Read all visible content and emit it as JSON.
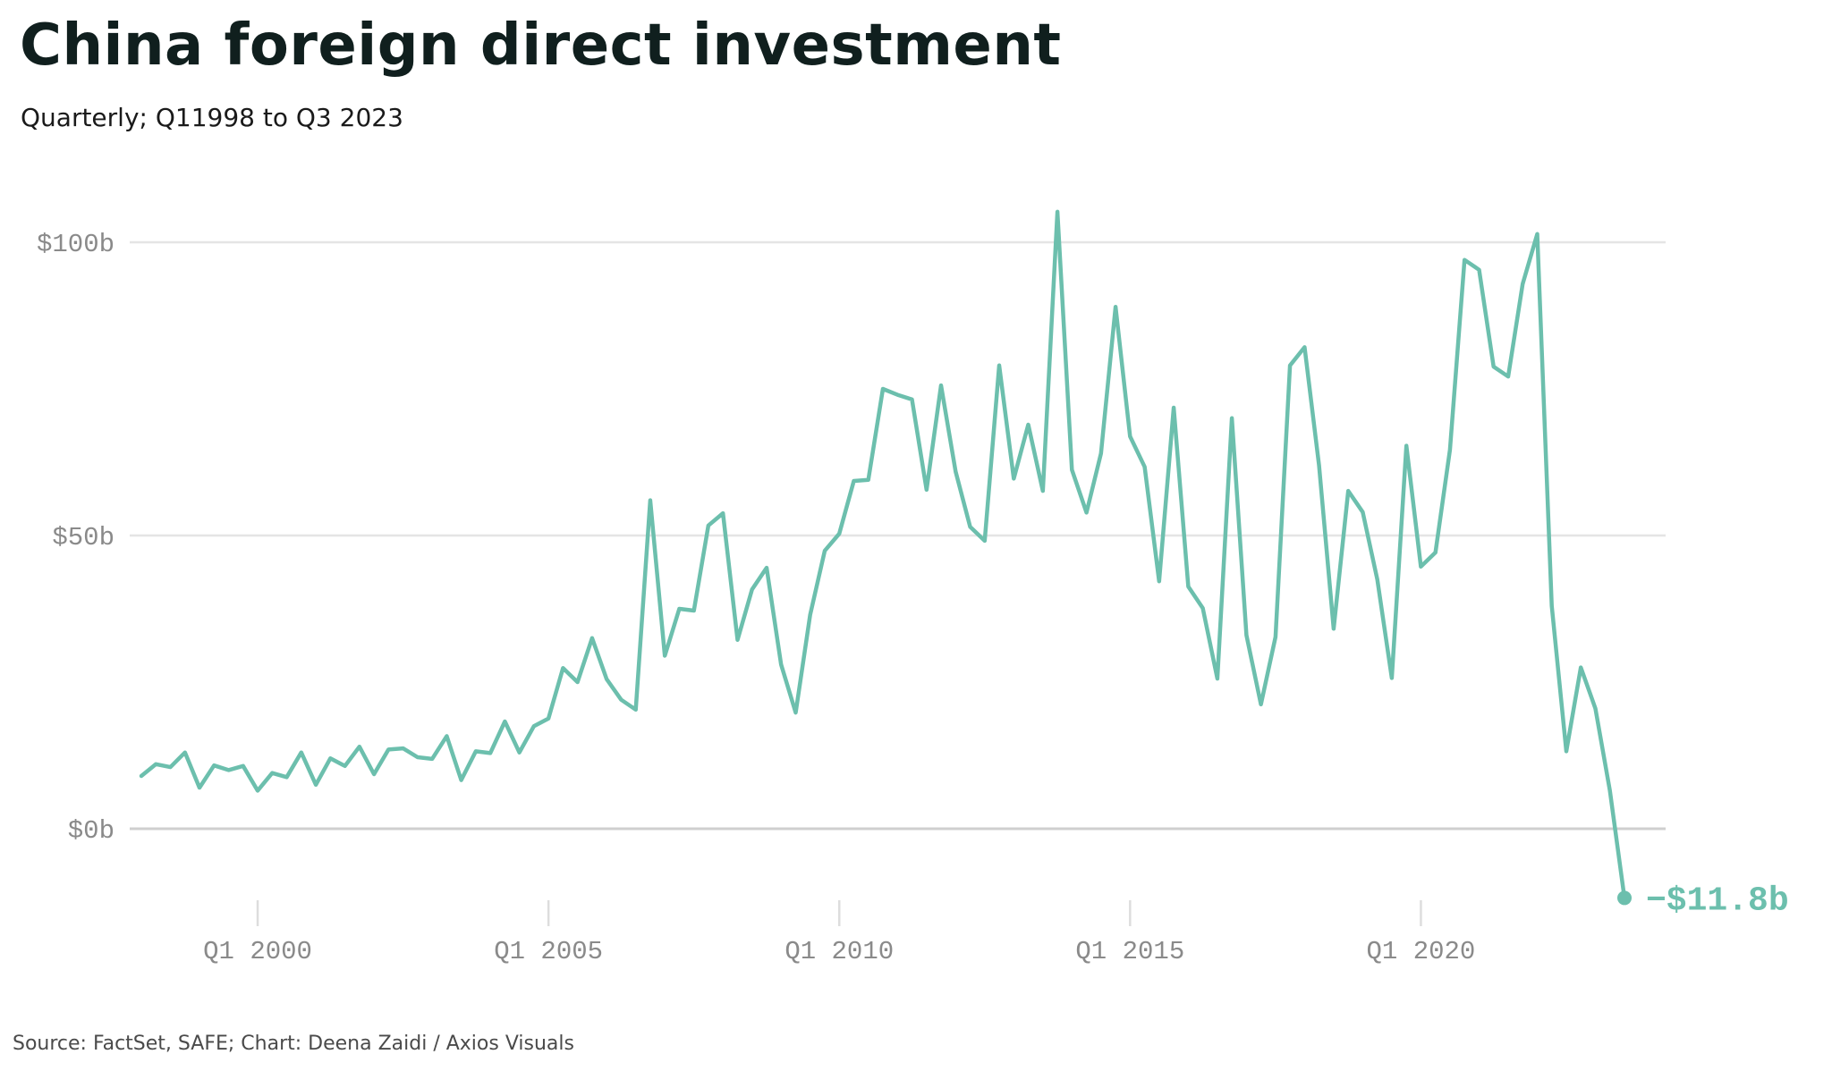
{
  "header": {
    "title": "China foreign direct investment",
    "subtitle": "Quarterly; Q11998 to Q3 2023"
  },
  "footer": {
    "source": "Source: FactSet, SAFE; Chart: Deena Zaidi / Axios Visuals"
  },
  "colors": {
    "line": "#6cbfad",
    "grid": "#e5e5e5",
    "zero_line": "#cfcfcf",
    "tick_text": "#8a8a8a",
    "tick_mark": "#dddddd",
    "title": "#101f1e"
  },
  "chart_data": {
    "type": "line",
    "title": "China foreign direct investment",
    "subtitle": "Quarterly; Q11998 to Q3 2023",
    "xlabel": "",
    "ylabel": "",
    "y_unit": "billion USD",
    "ylim": [
      -15,
      106
    ],
    "yticks": [
      {
        "value": 100,
        "label": "$100b"
      },
      {
        "value": 50,
        "label": "$50b"
      },
      {
        "value": 0,
        "label": "$0b"
      }
    ],
    "xticks": [
      {
        "value": 2000,
        "label": "Q1 2000"
      },
      {
        "value": 2005,
        "label": "Q1 2005"
      },
      {
        "value": 2010,
        "label": "Q1 2010"
      },
      {
        "value": 2015,
        "label": "Q1 2015"
      },
      {
        "value": 2020,
        "label": "Q1 2020"
      }
    ],
    "xlim": [
      1997.75,
      2024
    ],
    "grid": true,
    "legend": "none",
    "end_label": {
      "text": "−$11.8b",
      "value": -11.8
    },
    "series": [
      {
        "start": "Q1 1998",
        "values": [
          9,
          11,
          10.5,
          13,
          7,
          10.8,
          10,
          10.7,
          6.5,
          9.5,
          8.8,
          13,
          7.5,
          12,
          10.7,
          14,
          9.3,
          13.5,
          13.7,
          12.2,
          11.9,
          15.8,
          8.3,
          13.2,
          12.9,
          18.3,
          13,
          17.5,
          18.8,
          27.4,
          25,
          32.5,
          25.5,
          22,
          20.3,
          56,
          29.5,
          37.5,
          37.2,
          51.7,
          53.8,
          32.2,
          40.8,
          44.5,
          28,
          19.8,
          36.5,
          47.4,
          50.3,
          59.3,
          59.5,
          75,
          74,
          73.2,
          57.8,
          75.6,
          60.9,
          51.5,
          49.1,
          79,
          59.7,
          68.9,
          57.6,
          105.2,
          61.2,
          53.9,
          64,
          89,
          66.9,
          61.7,
          42.2,
          71.8,
          41.3,
          37.6,
          25.6,
          70,
          33,
          21.2,
          32.7,
          79,
          82.1,
          61.9,
          34.1,
          57.6,
          54,
          42.5,
          25.7,
          65.3,
          44.7,
          47.1,
          64.6,
          97,
          95.3,
          78.8,
          77.1,
          92.9,
          101.4,
          38,
          13.2,
          27.5,
          20.5,
          6.5,
          -11.8
        ]
      }
    ]
  }
}
